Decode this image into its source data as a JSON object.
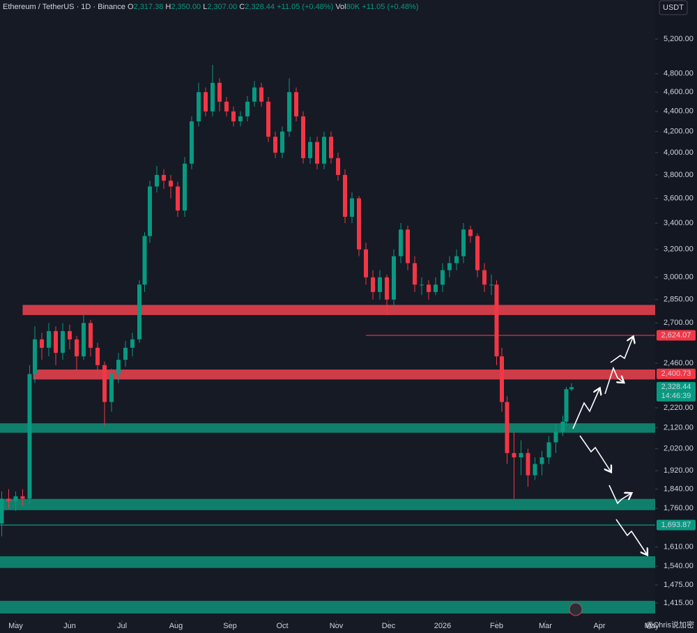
{
  "header": {
    "symbol": "Ethereum / TetherUS · 1D · Binance",
    "o_key": "O",
    "o": "2,317.38",
    "h_key": "H",
    "h": "2,350.00",
    "l_key": "L",
    "l": "2,307.00",
    "c_key": "C",
    "c": "2,328.44",
    "change": "+11.05 (+0.48%)",
    "vol_key": "Vol",
    "vol": "80K",
    "vol_change": "+11.05 (+0.48%)"
  },
  "currency_button": "USDT",
  "watermark": "@Chris说加密",
  "chart_data": {
    "type": "candlestick",
    "log_scale": true,
    "grid": false,
    "up_color": "#089981",
    "down_color": "#f23645",
    "x": [
      -8,
      -4,
      0,
      4,
      8,
      11,
      15,
      19,
      23,
      27,
      31,
      35,
      39,
      43,
      47,
      51,
      55,
      59,
      63,
      67,
      71,
      74,
      77,
      81,
      85,
      89,
      93,
      97,
      101,
      105,
      109,
      113,
      117,
      121,
      125,
      129,
      133,
      137,
      141,
      145,
      149,
      153,
      157,
      161,
      165,
      169,
      173,
      177,
      181,
      185,
      189,
      193,
      197,
      201,
      205,
      209,
      213,
      217,
      221,
      225,
      229,
      233,
      237,
      241,
      245,
      249,
      253,
      257,
      261,
      265,
      269,
      273,
      276,
      279,
      282,
      286,
      290,
      294,
      298,
      302,
      306,
      310,
      314,
      316,
      319
    ],
    "open": [
      1700,
      1800,
      1790,
      1810,
      1800,
      2400,
      2600,
      2550,
      2650,
      2520,
      2650,
      2600,
      2500,
      2700,
      2550,
      2450,
      2250,
      2400,
      2480,
      2550,
      2600,
      2950,
      3300,
      3700,
      3800,
      3750,
      3700,
      3500,
      3900,
      4300,
      4600,
      4400,
      4700,
      4500,
      4400,
      4300,
      4350,
      4500,
      4650,
      4500,
      4150,
      4000,
      4200,
      4600,
      4350,
      3950,
      4100,
      3900,
      4150,
      3950,
      3800,
      3450,
      3600,
      3200,
      3000,
      2900,
      3000,
      2850,
      3150,
      3350,
      3100,
      2950,
      2950,
      2900,
      2950,
      3050,
      3100,
      3150,
      3350,
      3300,
      3050,
      2950,
      2950,
      2500,
      2250,
      2000,
      1980,
      2000,
      1900,
      1950,
      1980,
      2050,
      2100,
      2150,
      2317.38
    ],
    "high": [
      1830,
      1840,
      1830,
      1840,
      2450,
      2680,
      2640,
      2700,
      2680,
      2700,
      2690,
      2620,
      2760,
      2720,
      2580,
      2470,
      2430,
      2520,
      2590,
      2640,
      2980,
      3330,
      3750,
      3880,
      3850,
      3800,
      3740,
      3960,
      4350,
      4700,
      4650,
      4900,
      4750,
      4550,
      4450,
      4400,
      4560,
      4720,
      4700,
      4550,
      4200,
      4250,
      4750,
      4650,
      4400,
      4150,
      4150,
      4200,
      4200,
      4000,
      3850,
      3650,
      3620,
      3250,
      3050,
      3050,
      3020,
      3200,
      3400,
      3380,
      3150,
      3000,
      2980,
      3000,
      3100,
      3150,
      3200,
      3400,
      3380,
      3320,
      3100,
      3020,
      2980,
      2550,
      2280,
      2100,
      2060,
      2020,
      1980,
      2010,
      2080,
      2140,
      2180,
      2330,
      2350
    ],
    "low": [
      1650,
      1760,
      1750,
      1770,
      1780,
      2350,
      2480,
      2500,
      2450,
      2480,
      2540,
      2420,
      2480,
      2500,
      2400,
      2130,
      2200,
      2350,
      2440,
      2500,
      2580,
      2900,
      3250,
      3650,
      3680,
      3600,
      3450,
      3450,
      3850,
      4250,
      4350,
      4350,
      4400,
      4350,
      4250,
      4250,
      4300,
      4450,
      4450,
      4100,
      3950,
      3950,
      4150,
      4300,
      3900,
      3900,
      3850,
      3850,
      3900,
      3750,
      3400,
      3400,
      3150,
      2950,
      2850,
      2850,
      2750,
      2800,
      3100,
      3050,
      2900,
      2880,
      2850,
      2880,
      2900,
      3000,
      3050,
      3100,
      3250,
      3000,
      2900,
      2880,
      2450,
      2200,
      1950,
      1800,
      1900,
      1850,
      1880,
      1900,
      1950,
      2000,
      2080,
      2130,
      2307
    ],
    "close": [
      1800,
      1790,
      1810,
      1800,
      2400,
      2600,
      2550,
      2650,
      2520,
      2650,
      2600,
      2500,
      2700,
      2550,
      2450,
      2250,
      2400,
      2480,
      2550,
      2600,
      2950,
      3300,
      3700,
      3800,
      3750,
      3700,
      3500,
      3900,
      4300,
      4600,
      4400,
      4700,
      4500,
      4400,
      4300,
      4350,
      4500,
      4650,
      4500,
      4150,
      4000,
      4200,
      4600,
      4350,
      3950,
      4100,
      3900,
      4150,
      3950,
      3800,
      3450,
      3600,
      3200,
      3000,
      2900,
      3000,
      2850,
      3150,
      3350,
      3100,
      2950,
      2950,
      2900,
      2950,
      3050,
      3100,
      3150,
      3350,
      3300,
      3050,
      2950,
      2950,
      2500,
      2250,
      2000,
      1980,
      2000,
      1900,
      1950,
      1980,
      2050,
      2100,
      2150,
      2317.38,
      2328.44
    ],
    "xlim": [
      -9,
      367
    ],
    "ylim": [
      1359,
      5690
    ],
    "xticks": [
      {
        "value": 0,
        "label": "May"
      },
      {
        "value": 31,
        "label": "Jun"
      },
      {
        "value": 61,
        "label": "Jul"
      },
      {
        "value": 92,
        "label": "Aug"
      },
      {
        "value": 123,
        "label": "Sep"
      },
      {
        "value": 153,
        "label": "Oct"
      },
      {
        "value": 184,
        "label": "Nov"
      },
      {
        "value": 214,
        "label": "Dec"
      },
      {
        "value": 245,
        "label": "2026"
      },
      {
        "value": 276,
        "label": "Feb"
      },
      {
        "value": 304,
        "label": "Mar"
      },
      {
        "value": 335,
        "label": "Apr"
      },
      {
        "value": 365,
        "label": "May"
      }
    ],
    "yticks": [
      {
        "value": 5200,
        "label": "5,200.00"
      },
      {
        "value": 4800,
        "label": "4,800.00"
      },
      {
        "value": 4600,
        "label": "4,600.00"
      },
      {
        "value": 4400,
        "label": "4,400.00"
      },
      {
        "value": 4200,
        "label": "4,200.00"
      },
      {
        "value": 4000,
        "label": "4,000.00"
      },
      {
        "value": 3800,
        "label": "3,800.00"
      },
      {
        "value": 3600,
        "label": "3,600.00"
      },
      {
        "value": 3400,
        "label": "3,400.00"
      },
      {
        "value": 3200,
        "label": "3,200.00"
      },
      {
        "value": 3000,
        "label": "3,000.00"
      },
      {
        "value": 2850,
        "label": "2,850.00"
      },
      {
        "value": 2700,
        "label": "2,700.00"
      },
      {
        "value": 2460,
        "label": "2,460.00"
      },
      {
        "value": 2220,
        "label": "2,220.00"
      },
      {
        "value": 2120,
        "label": "2,120.00"
      },
      {
        "value": 2020,
        "label": "2,020.00"
      },
      {
        "value": 1920,
        "label": "1,920.00"
      },
      {
        "value": 1840,
        "label": "1,840.00"
      },
      {
        "value": 1760,
        "label": "1,760.00"
      },
      {
        "value": 1610,
        "label": "1,610.00"
      },
      {
        "value": 1540,
        "label": "1,540.00"
      },
      {
        "value": 1475,
        "label": "1,475.00"
      },
      {
        "value": 1415,
        "label": "1,415.00"
      }
    ],
    "zones": [
      {
        "from": 4,
        "range": [
          2750,
          2815
        ],
        "color": "#e2404c"
      },
      {
        "from": 10,
        "range": [
          2370,
          2425
        ],
        "color": "#e2404c"
      },
      {
        "from": -9,
        "range": [
          2096,
          2142
        ],
        "color": "#0e8b74"
      },
      {
        "from": -9,
        "range": [
          1753,
          1799
        ],
        "color": "#0e8b74"
      },
      {
        "from": -9,
        "range": [
          1534,
          1576
        ],
        "color": "#0e8b74"
      },
      {
        "from": -9,
        "range": [
          1381,
          1422
        ],
        "color": "#0e8b74"
      }
    ],
    "lines": [
      {
        "from": 201,
        "value": 2624.07,
        "color": "#f23645"
      },
      {
        "from": -9,
        "value": 1693.87,
        "color": "#089981"
      }
    ],
    "price_labels": [
      {
        "value": 2624.07,
        "label": "2,624.07",
        "color": "#f23645"
      },
      {
        "value": 2400.73,
        "label": "2,400.73",
        "color": "#f23645"
      },
      {
        "value": 2328.44,
        "label": "2,328.44",
        "color": "#089981",
        "countdown": "14:46:39"
      },
      {
        "value": 1693.87,
        "label": "1,693.87",
        "color": "#089981"
      }
    ]
  }
}
